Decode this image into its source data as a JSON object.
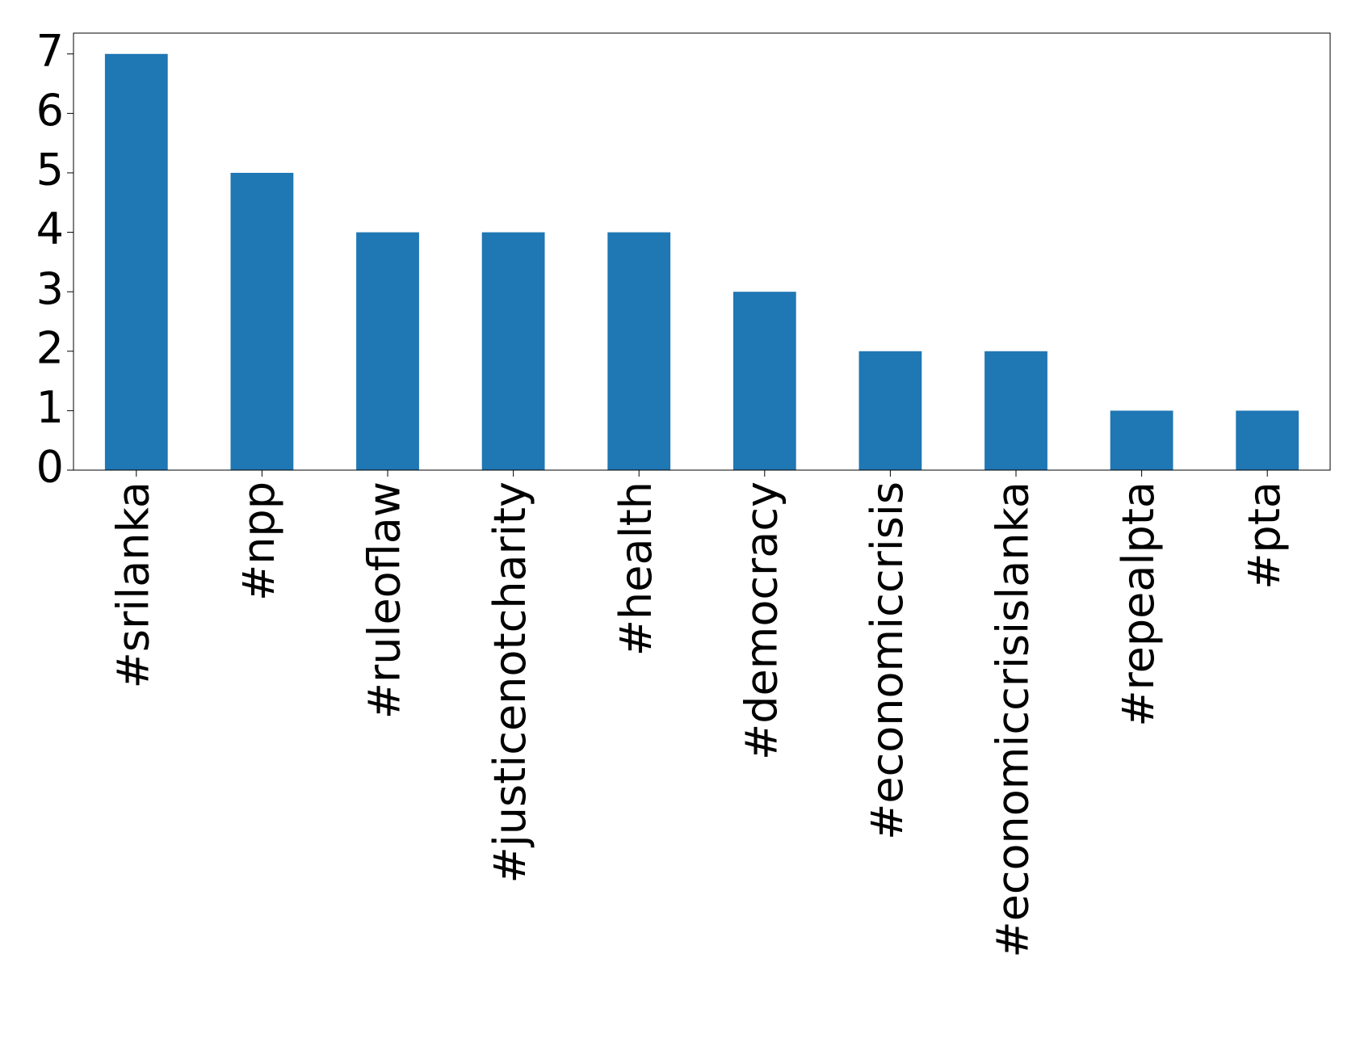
{
  "chart_data": {
    "type": "bar",
    "categories": [
      "#srilanka",
      "#npp",
      "#ruleoflaw",
      "#justicenotcharity",
      "#health",
      "#democracy",
      "#economiccrisis",
      "#economiccrisislanka",
      "#repealpta",
      "#pta"
    ],
    "values": [
      7,
      5,
      4,
      4,
      4,
      3,
      2,
      2,
      1,
      1
    ],
    "color": "#1f77b4",
    "ylim": [
      0,
      7.35
    ],
    "yticks": [
      0,
      1,
      2,
      3,
      4,
      5,
      6,
      7
    ],
    "grid": false
  }
}
